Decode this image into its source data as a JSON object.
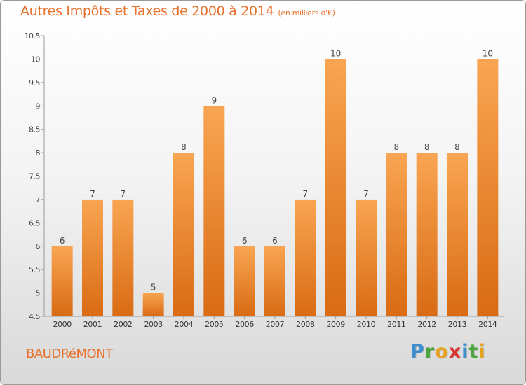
{
  "title": "Autres Impôts et Taxes de 2000 à 2014",
  "subtitle": "(en milliers d'€)",
  "location": "BAUDRéMONT",
  "logo": {
    "letters": [
      "P",
      "r",
      "o",
      "x",
      "i",
      "t",
      "i"
    ],
    "colors": [
      "#3b8fd0",
      "#4aa53c",
      "#e7a21e",
      "#d8352e",
      "#3b8fd0",
      "#4aa53c",
      "#e7a21e"
    ]
  },
  "chart_data": {
    "type": "bar",
    "categories": [
      "2000",
      "2001",
      "2002",
      "2003",
      "2004",
      "2005",
      "2006",
      "2007",
      "2008",
      "2009",
      "2010",
      "2011",
      "2012",
      "2013",
      "2014"
    ],
    "values": [
      6,
      7,
      7,
      5,
      8,
      9,
      6,
      6,
      7,
      10,
      7,
      8,
      8,
      8,
      10
    ],
    "ylim": [
      4.5,
      10.5
    ],
    "yticks": [
      "4.5",
      "5",
      "5.5",
      "6",
      "6.5",
      "7",
      "7.5",
      "8",
      "8.5",
      "9",
      "9.5",
      "10",
      "10.5"
    ],
    "bar_color": "#f08c33",
    "grid": false,
    "data_labels": true
  }
}
